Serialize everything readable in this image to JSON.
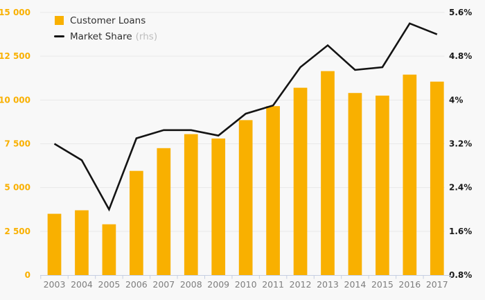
{
  "chart_data": {
    "type": "combo-bar-line",
    "title": "",
    "categories": [
      "2003",
      "2004",
      "2005",
      "2006",
      "2007",
      "2008",
      "2009",
      "2010",
      "2011",
      "2012",
      "2013",
      "2014",
      "2015",
      "2016",
      "2017"
    ],
    "series": [
      {
        "name": "Customer Loans",
        "note": "",
        "type": "bar",
        "axis": "left",
        "values": [
          3500,
          3700,
          2900,
          5950,
          7250,
          8050,
          7800,
          8850,
          9650,
          10700,
          11650,
          10400,
          10250,
          11450,
          11050
        ]
      },
      {
        "name": "Market Share",
        "note": "(rhs)",
        "type": "line",
        "axis": "right",
        "values": [
          3.2,
          2.9,
          2.0,
          3.3,
          3.45,
          3.45,
          3.35,
          3.75,
          3.9,
          4.6,
          5.0,
          4.55,
          4.6,
          5.4,
          5.2
        ]
      }
    ],
    "left_axis": {
      "min": 0,
      "max": 15000,
      "tick_labels": [
        "0",
        "2 500",
        "5 000",
        "7 500",
        "10 000",
        "12 500",
        "15 000"
      ]
    },
    "right_axis": {
      "min": 0.8,
      "max": 5.6,
      "tick_labels": [
        "0.8%",
        "1.6%",
        "2.4%",
        "3.2%",
        "4%",
        "4.8%",
        "5.6%"
      ]
    },
    "grid": true,
    "legend_position": "top-left"
  },
  "colors": {
    "background": "#f8f8f8",
    "bar": "#f9b000",
    "line": "#141414",
    "left_axis_text": "#f9b000",
    "right_axis_text": "#1a1a1a",
    "x_axis_text": "#7d7d7d",
    "x_axis_line": "#c6cfe2",
    "gridline": "#e9e9e9",
    "legend_text": "#2e2e2e",
    "legend_note_text": "#bdbdbd"
  }
}
